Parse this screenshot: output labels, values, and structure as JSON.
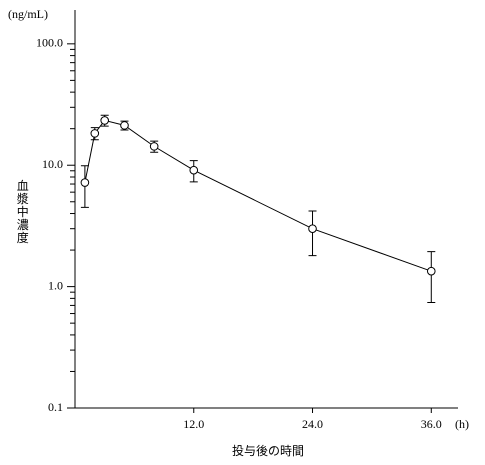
{
  "chart_data": {
    "type": "line",
    "y_unit": "(ng/mL)",
    "x_unit": "(h)",
    "ylabel": "血漿中濃度",
    "xlabel": "投与後の時間",
    "log_y": true,
    "x": [
      1,
      2,
      3,
      5,
      8,
      12,
      24,
      36
    ],
    "values": [
      7.2,
      18.3,
      23.4,
      21.3,
      14.3,
      9.1,
      3.0,
      1.34
    ],
    "errors": [
      2.7,
      2.1,
      2.4,
      1.8,
      1.5,
      1.8,
      1.2,
      0.6
    ],
    "color": "#000000",
    "xlim": [
      0,
      38.7
    ],
    "ylim": [
      0.1,
      190
    ],
    "xticks": [
      {
        "value": 12,
        "label": "12.0"
      },
      {
        "value": 24,
        "label": "24.0"
      },
      {
        "value": 36,
        "label": "36.0"
      }
    ],
    "yticks": [
      0.1,
      {
        "value": 1,
        "label": "1.0"
      },
      {
        "value": 10,
        "label": "10.0"
      },
      {
        "value": 100,
        "label": "100.0"
      }
    ],
    "yminorticks": [
      0.2,
      0.3,
      0.4,
      0.5,
      0.6,
      0.7,
      0.8,
      0.9,
      2,
      3,
      4,
      5,
      6,
      7,
      8,
      9,
      20,
      30,
      40,
      50,
      60,
      70,
      80,
      90
    ]
  }
}
